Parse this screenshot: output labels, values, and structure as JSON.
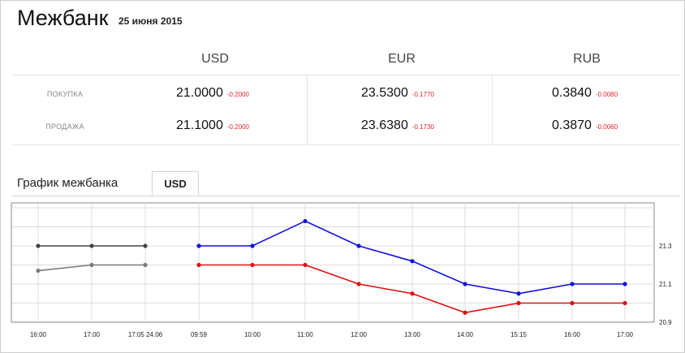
{
  "header": {
    "title": "Межбанк",
    "date": "25 июня 2015"
  },
  "currencies": [
    "USD",
    "EUR",
    "RUB"
  ],
  "rows": [
    {
      "label": "ПОКУПКА",
      "cells": [
        {
          "value": "21.0000",
          "change": "-0.2000"
        },
        {
          "value": "23.5300",
          "change": "-0.1770"
        },
        {
          "value": "0.3840",
          "change": "-0.0080"
        }
      ]
    },
    {
      "label": "ПРОДАЖА",
      "cells": [
        {
          "value": "21.1000",
          "change": "-0.2000"
        },
        {
          "value": "23.6380",
          "change": "-0.1730"
        },
        {
          "value": "0.3870",
          "change": "-0.0060"
        }
      ]
    }
  ],
  "chart_section": {
    "title": "График межбанка",
    "active_tab": "USD"
  },
  "colors": {
    "change_negative": "#e3262a",
    "series_blue": "#1010e0",
    "series_red": "#e01010",
    "series_dark": "#444444",
    "series_gray": "#7a7a7a"
  },
  "chart_data": {
    "type": "line",
    "categories": [
      "16:00",
      "17:00",
      "17:05 24.06",
      "09:59",
      "10:00",
      "11:00",
      "12:00",
      "13:00",
      "14:00",
      "15:15",
      "16:00",
      "17:00"
    ],
    "yticks": [
      "21.3",
      "21.1",
      "20.9"
    ],
    "ylim": [
      20.9,
      21.5
    ],
    "grid": true,
    "series": [
      {
        "color": "#444444",
        "values": [
          21.3,
          21.3,
          21.3,
          null,
          null,
          null,
          null,
          null,
          null,
          null,
          null,
          null
        ]
      },
      {
        "color": "#7a7a7a",
        "values": [
          21.17,
          21.2,
          21.2,
          null,
          null,
          null,
          null,
          null,
          null,
          null,
          null,
          null
        ]
      },
      {
        "color": "#1010e0",
        "values": [
          null,
          null,
          null,
          21.3,
          21.3,
          21.43,
          21.3,
          21.22,
          21.1,
          21.05,
          21.1,
          21.1
        ]
      },
      {
        "color": "#e01010",
        "values": [
          null,
          null,
          null,
          21.2,
          21.2,
          21.2,
          21.1,
          21.05,
          20.95,
          21.0,
          21.0,
          21.0
        ]
      }
    ]
  }
}
